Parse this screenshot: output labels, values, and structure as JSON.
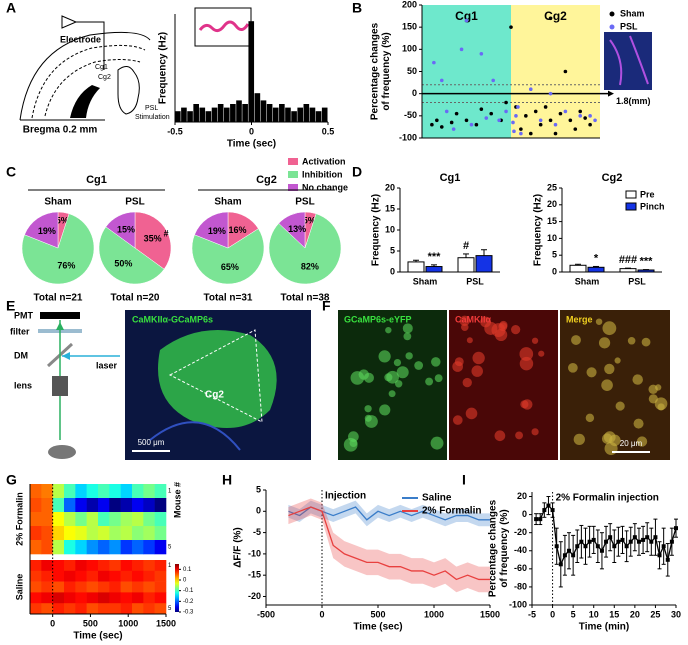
{
  "panel_labels": [
    "A",
    "B",
    "C",
    "D",
    "E",
    "F",
    "G",
    "H",
    "I"
  ],
  "schematic_A": {
    "electrode": "Electrode",
    "cg1": "Cg1",
    "cg2": "Cg2",
    "bregma": "Bregma 0.2 mm",
    "psl": "PSL",
    "stim": "Stimulation"
  },
  "setup_E": {
    "pmt": "PMT",
    "filter": "filter",
    "dm": "DM",
    "laser": "laser",
    "lens": "lens",
    "image_title": "CaMKIIα-GCaMP6s",
    "region": "Cg2",
    "scale_bar": "500 μm"
  },
  "images_F": {
    "channels": [
      "GCaMP6s-eYFP",
      "CaMKIIα",
      "Merge"
    ],
    "scale_bar": "20 μm"
  },
  "chart_data": [
    {
      "type": "histogram",
      "xlabel": "Time (sec)",
      "ylabel": "Frequency (Hz)",
      "xlim": [
        -0.5,
        0.5
      ],
      "xticks": [
        -0.5,
        0,
        0.5
      ],
      "ylim": [
        0,
        30
      ],
      "color": "#000000",
      "bins": [
        -0.5,
        -0.46,
        -0.42,
        -0.38,
        -0.34,
        -0.3,
        -0.26,
        -0.22,
        -0.18,
        -0.14,
        -0.1,
        -0.06,
        -0.02,
        0.02,
        0.06,
        0.1,
        0.14,
        0.18,
        0.22,
        0.26,
        0.3,
        0.34,
        0.38,
        0.42,
        0.46,
        0.5
      ],
      "values": [
        3,
        4,
        3,
        5,
        4,
        3,
        4,
        5,
        4,
        5,
        6,
        5,
        28,
        8,
        6,
        5,
        4,
        5,
        4,
        3,
        4,
        5,
        4,
        3,
        4
      ]
    },
    {
      "type": "scatter",
      "ylabel": "Percentage changes of frequency (%)",
      "x_end_label": "1.8(mm)",
      "xlim": [
        0,
        1.8
      ],
      "ylim": [
        -100,
        200
      ],
      "yticks": [
        -100,
        -50,
        0,
        50,
        100,
        150,
        200
      ],
      "reference_lines": [
        20,
        -20
      ],
      "regions": [
        {
          "label": "Cg1",
          "range": [
            0,
            0.9
          ],
          "color": "#6ee8cc"
        },
        {
          "label": "Cg2",
          "range": [
            0.9,
            1.8
          ],
          "color": "#fff59a"
        }
      ],
      "series": [
        {
          "name": "Sham",
          "color": "#000000",
          "x": [
            0.1,
            0.15,
            0.2,
            0.3,
            0.35,
            0.45,
            0.55,
            0.6,
            0.7,
            0.8,
            0.85,
            0.9,
            0.95,
            1.0,
            1.05,
            1.1,
            1.15,
            1.2,
            1.25,
            1.3,
            1.3,
            1.35,
            1.4,
            1.45,
            1.5,
            1.55,
            1.6,
            1.65,
            1.7
          ],
          "values": [
            -70,
            -60,
            -75,
            -65,
            -45,
            -60,
            -70,
            -35,
            -45,
            -60,
            -20,
            150,
            -30,
            -80,
            -50,
            -90,
            -40,
            -70,
            -30,
            -60,
            170,
            -90,
            -45,
            50,
            -60,
            -80,
            -40,
            -55,
            -70
          ]
        },
        {
          "name": "PSL",
          "color": "#6a6af5",
          "x": [
            0.12,
            0.2,
            0.25,
            0.32,
            0.4,
            0.45,
            0.5,
            0.6,
            0.65,
            0.72,
            0.78,
            0.85,
            0.92,
            0.93,
            0.95,
            0.97,
            1.0,
            1.1,
            1.2,
            1.3,
            1.35,
            1.45,
            1.6,
            1.7,
            1.75
          ],
          "values": [
            70,
            30,
            -40,
            -80,
            100,
            165,
            -70,
            90,
            -55,
            30,
            -60,
            -40,
            -65,
            -85,
            -50,
            -30,
            -90,
            10,
            -60,
            0,
            -70,
            -40,
            -50,
            -50,
            -60
          ]
        }
      ]
    },
    {
      "type": "pie",
      "categories": [
        "Activation",
        "Inhibition",
        "No change"
      ],
      "colors": [
        "#f06292",
        "#7be495",
        "#c257d0"
      ],
      "groups": [
        {
          "name": "Cg1",
          "pies": [
            {
              "title": "Sham",
              "values": [
                5,
                76,
                19
              ],
              "value_labels": [
                "5%",
                "76%",
                "19%"
              ],
              "total": "Total n=21",
              "markers": [
                null,
                null,
                null
              ]
            },
            {
              "title": "PSL",
              "values": [
                35,
                50,
                15
              ],
              "value_labels": [
                "35%",
                "50%",
                "15%"
              ],
              "total": "Total n=20",
              "markers": [
                "#",
                null,
                null
              ]
            }
          ]
        },
        {
          "name": "Cg2",
          "pies": [
            {
              "title": "Sham",
              "values": [
                16,
                65,
                19
              ],
              "value_labels": [
                "16%",
                "65%",
                "19%"
              ],
              "total": "Total n=31",
              "markers": [
                null,
                null,
                null
              ]
            },
            {
              "title": "PSL",
              "values": [
                5,
                82,
                13
              ],
              "value_labels": [
                "5%",
                "82%",
                "13%"
              ],
              "total": "Total n=38",
              "markers": [
                null,
                null,
                null
              ]
            }
          ]
        }
      ]
    },
    {
      "type": "bar",
      "series": [
        {
          "name": "Pre",
          "color": "#ffffff"
        },
        {
          "name": "Pinch",
          "color": "#1433e6"
        }
      ],
      "subplots": [
        {
          "title": "Cg1",
          "ylabel": "Frequency (Hz)",
          "categories": [
            "Sham",
            "PSL"
          ],
          "ylim": [
            0,
            20
          ],
          "yticks": [
            0,
            5,
            10,
            15,
            20
          ],
          "values": [
            [
              2.4,
              3.4
            ],
            [
              1.3,
              3.9
            ]
          ],
          "errors": [
            [
              0.4,
              0.9
            ],
            [
              0.4,
              1.4
            ]
          ],
          "markers": [
            [
              null,
              "#"
            ],
            [
              "***",
              null
            ]
          ]
        },
        {
          "title": "Cg2",
          "ylabel": "Frequency (Hz)",
          "categories": [
            "Sham",
            "PSL"
          ],
          "ylim": [
            0,
            25
          ],
          "yticks": [
            0,
            5,
            10,
            15,
            20,
            25
          ],
          "values": [
            [
              2.0,
              1.0
            ],
            [
              1.4,
              0.6
            ]
          ],
          "errors": [
            [
              0.3,
              0.15
            ],
            [
              0.25,
              0.12
            ]
          ],
          "markers": [
            [
              null,
              "###"
            ],
            [
              "*",
              "***"
            ]
          ]
        }
      ]
    },
    {
      "type": "heatmap",
      "xlabel": "Time (sec)",
      "ylabel": "Mouse #",
      "xlim": [
        -300,
        1500
      ],
      "xticks": [
        0,
        500,
        1000,
        1500
      ],
      "zlim": [
        -0.3,
        0.15
      ],
      "zticks": [
        0.1,
        0,
        -0.1,
        -0.2,
        -0.3
      ],
      "colormap": "jet",
      "groups": [
        {
          "label": "2% Formalin",
          "row_ticks": [
            1,
            5
          ],
          "rows": [
            [
              0.05,
              0.04,
              -0.05,
              -0.1,
              -0.15,
              -0.12,
              -0.1,
              -0.12,
              -0.15,
              -0.1,
              -0.08,
              -0.1
            ],
            [
              0.06,
              0.05,
              -0.1,
              -0.2,
              -0.25,
              -0.28,
              -0.25,
              -0.3,
              -0.28,
              -0.25,
              -0.27,
              -0.3
            ],
            [
              0.05,
              0.05,
              -0.02,
              -0.05,
              -0.08,
              -0.05,
              -0.1,
              -0.08,
              -0.06,
              -0.05,
              -0.08,
              -0.1
            ],
            [
              0.07,
              0.06,
              0.0,
              -0.02,
              -0.03,
              -0.05,
              -0.04,
              -0.06,
              -0.05,
              -0.07,
              -0.06,
              -0.08
            ],
            [
              0.05,
              0.06,
              -0.05,
              -0.12,
              -0.15,
              -0.18,
              -0.2,
              -0.18,
              -0.22,
              -0.2,
              -0.22,
              -0.25
            ]
          ]
        },
        {
          "label": "Saline",
          "row_ticks": [
            1,
            5
          ],
          "rows": [
            [
              0.08,
              0.1,
              0.09,
              0.08,
              0.1,
              0.09,
              0.08,
              0.07,
              0.09,
              0.08,
              0.07,
              0.08
            ],
            [
              0.07,
              0.08,
              0.09,
              0.1,
              0.09,
              0.08,
              0.1,
              0.09,
              0.08,
              0.09,
              0.08,
              0.07
            ],
            [
              0.06,
              0.07,
              0.06,
              0.08,
              0.07,
              0.06,
              0.07,
              0.08,
              0.06,
              0.07,
              0.06,
              0.07
            ],
            [
              0.09,
              0.1,
              0.11,
              0.1,
              0.09,
              0.1,
              0.11,
              0.1,
              0.09,
              0.1,
              0.08,
              0.09
            ],
            [
              0.07,
              0.06,
              0.08,
              0.07,
              0.08,
              0.06,
              0.07,
              0.07,
              0.08,
              0.06,
              0.07,
              0.06
            ]
          ]
        }
      ]
    },
    {
      "type": "line",
      "xlabel": "Time (sec)",
      "ylabel": "ΔF/F (%)",
      "xlim": [
        -500,
        1500
      ],
      "xticks": [
        -500,
        0,
        500,
        1000,
        1500
      ],
      "ylim": [
        -22,
        5
      ],
      "yticks": [
        5,
        0,
        -5,
        -10,
        -15,
        -20
      ],
      "error_style": "band",
      "event_x": 0,
      "annotation": "Injection",
      "x": [
        -300,
        -200,
        -100,
        0,
        100,
        200,
        300,
        400,
        500,
        600,
        700,
        800,
        900,
        1000,
        1100,
        1200,
        1300,
        1400,
        1500
      ],
      "series": [
        {
          "name": "Saline",
          "color": "#3a7dc9",
          "values": [
            0,
            -1,
            1,
            0,
            -1,
            0,
            1,
            -2,
            0,
            -1,
            0,
            -1,
            0,
            -1,
            -2,
            -1,
            -1,
            -2,
            -2
          ],
          "errors": [
            1.5,
            1.5,
            1.5,
            1.5,
            1.5,
            1.5,
            1.5,
            1.5,
            1.5,
            1.5,
            1.5,
            1.5,
            1.5,
            1.5,
            1.5,
            1.5,
            1.5,
            1.5,
            1.5
          ]
        },
        {
          "name": "2% Formalin",
          "color": "#e8403f",
          "values": [
            -1,
            0,
            1,
            0,
            -8,
            -10,
            -11,
            -12,
            -12,
            -13,
            -13,
            -14,
            -14,
            -15,
            -14,
            -16,
            -15,
            -16,
            -16
          ],
          "errors": [
            2,
            2,
            2,
            2,
            3,
            3,
            3,
            3,
            3,
            3,
            3,
            3,
            3,
            3,
            3,
            3,
            3,
            3,
            3
          ]
        }
      ]
    },
    {
      "type": "line",
      "xlabel": "Time (min)",
      "ylabel": "Percentage changes of frequency (%)",
      "xlim": [
        -5,
        30
      ],
      "xticks": [
        -5,
        0,
        5,
        10,
        15,
        20,
        25,
        30
      ],
      "ylim": [
        -100,
        25
      ],
      "yticks": [
        20,
        0,
        -20,
        -40,
        -60,
        -80,
        -100
      ],
      "error_style": "bars",
      "event_x": 0,
      "annotation": "2% Formalin injection",
      "x": [
        -4,
        -3,
        -2,
        -1,
        0,
        1,
        2,
        3,
        4,
        5,
        6,
        7,
        8,
        9,
        10,
        11,
        12,
        13,
        14,
        15,
        16,
        17,
        18,
        19,
        20,
        21,
        22,
        23,
        24,
        25,
        26,
        27,
        28,
        29,
        30
      ],
      "series": [
        {
          "color": "#000000",
          "values": [
            -5,
            -5,
            5,
            10,
            5,
            -35,
            -55,
            -45,
            -40,
            -45,
            -35,
            -30,
            -35,
            -30,
            -28,
            -35,
            -40,
            -30,
            -25,
            -35,
            -30,
            -28,
            -35,
            -30,
            -25,
            -30,
            -28,
            -25,
            -30,
            -25,
            -45,
            -35,
            -50,
            -30,
            -15
          ],
          "errors": [
            6,
            6,
            8,
            10,
            8,
            20,
            25,
            22,
            20,
            22,
            18,
            18,
            20,
            17,
            15,
            18,
            20,
            17,
            15,
            18,
            16,
            15,
            17,
            16,
            15,
            15,
            15,
            16,
            15,
            20,
            15,
            20,
            18,
            15,
            10
          ]
        }
      ]
    }
  ]
}
